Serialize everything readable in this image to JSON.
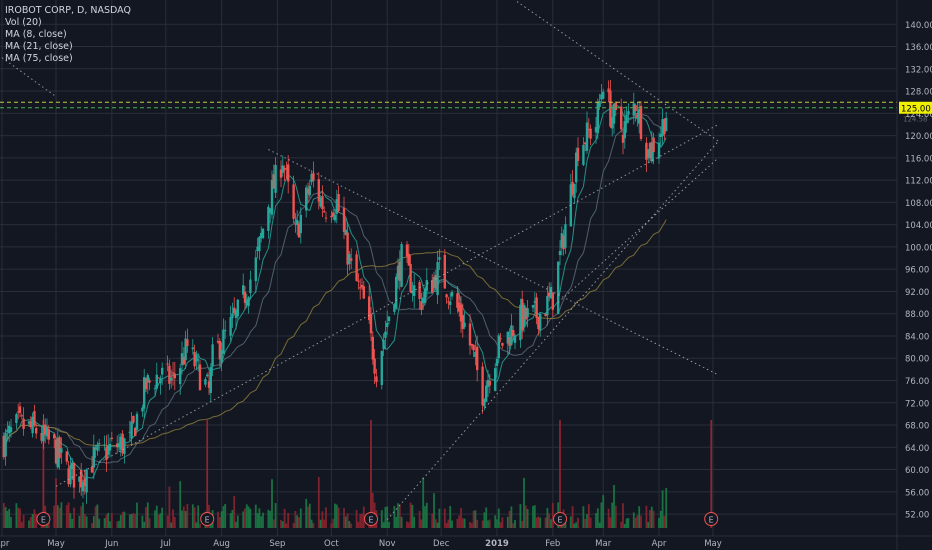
{
  "legend": {
    "symbol_line": "IROBOT CORP, D, NASDAQ",
    "indicators": [
      "Vol (20)",
      "MA (8, close)",
      "MA (21, close)",
      "MA (75, close)"
    ]
  },
  "colors": {
    "background": "#131722",
    "grid": "#2a2e39",
    "axis_text": "#b2b5be",
    "up": "#26a69a",
    "down": "#ef5350",
    "vol_up": "#1b7a45",
    "vol_down": "#8b2530",
    "ma8": "#26a69a",
    "ma21": "#5b6b7a",
    "ma75": "#8a7a3a",
    "price_line": "#4caf50",
    "resistance_line": "#c8c840",
    "trendline": "#b2b5be",
    "price_tag": "#f0f000",
    "earnings_marker": "#ef5350"
  },
  "chart_data": {
    "type": "candlestick",
    "x_axis": {
      "tick_labels": [
        "Apr",
        "May",
        "Jun",
        "Jul",
        "Aug",
        "Sep",
        "Oct",
        "Nov",
        "Dec",
        "2019",
        "Feb",
        "Mar",
        "Apr",
        "May"
      ]
    },
    "y_axis": {
      "range": [
        49.5,
        144
      ],
      "tick_labels": [
        "52.00",
        "56.00",
        "60.00",
        "64.00",
        "68.00",
        "72.00",
        "76.00",
        "80.00",
        "84.00",
        "88.00",
        "92.00",
        "96.00",
        "100.00",
        "104.00",
        "108.00",
        "112.00",
        "116.00",
        "120.00",
        "124.00",
        "128.00",
        "132.00",
        "136.00",
        "140.00"
      ]
    },
    "anchor_closes": [
      [
        "2018-04-02",
        65
      ],
      [
        "2018-04-10",
        68
      ],
      [
        "2018-04-20",
        67
      ],
      [
        "2018-04-30",
        64
      ],
      [
        "2018-05-07",
        60
      ],
      [
        "2018-05-14",
        58
      ],
      [
        "2018-05-22",
        62
      ],
      [
        "2018-06-01",
        64
      ],
      [
        "2018-06-11",
        65
      ],
      [
        "2018-06-20",
        75
      ],
      [
        "2018-06-27",
        77
      ],
      [
        "2018-07-05",
        76
      ],
      [
        "2018-07-13",
        82
      ],
      [
        "2018-07-20",
        77
      ],
      [
        "2018-07-25",
        74
      ],
      [
        "2018-07-27",
        80
      ],
      [
        "2018-08-10",
        88
      ],
      [
        "2018-08-20",
        97
      ],
      [
        "2018-08-27",
        108
      ],
      [
        "2018-09-04",
        116
      ],
      [
        "2018-09-11",
        102
      ],
      [
        "2018-09-20",
        112
      ],
      [
        "2018-09-27",
        107
      ],
      [
        "2018-10-04",
        108
      ],
      [
        "2018-10-12",
        96
      ],
      [
        "2018-10-19",
        90
      ],
      [
        "2018-10-26",
        78
      ],
      [
        "2018-11-02",
        88
      ],
      [
        "2018-11-09",
        98
      ],
      [
        "2018-11-19",
        90
      ],
      [
        "2018-11-30",
        96
      ],
      [
        "2018-12-04",
        93
      ],
      [
        "2018-12-14",
        86
      ],
      [
        "2018-12-24",
        74
      ],
      [
        "2019-01-02",
        82
      ],
      [
        "2019-01-14",
        87
      ],
      [
        "2019-01-25",
        88
      ],
      [
        "2019-02-01",
        91
      ],
      [
        "2019-02-06",
        100
      ],
      [
        "2019-02-15",
        118
      ],
      [
        "2019-02-25",
        122
      ],
      [
        "2019-03-01",
        130
      ],
      [
        "2019-03-05",
        124
      ],
      [
        "2019-03-12",
        121
      ],
      [
        "2019-03-19",
        126
      ],
      [
        "2019-03-26",
        117
      ],
      [
        "2019-04-01",
        120
      ],
      [
        "2019-04-05",
        124
      ]
    ],
    "earnings_markers": [
      "2018-04-24",
      "2018-07-24",
      "2018-10-23",
      "2019-02-05",
      "2019-04-30"
    ],
    "horizontal_lines": [
      125.0,
      126.0
    ],
    "trendlines": [
      [
        [
          "2018-04-01",
          134
        ],
        [
          "2018-05-01",
          127
        ]
      ],
      [
        [
          "2018-08-27",
          117.5
        ],
        [
          "2019-05-04",
          77
        ]
      ],
      [
        [
          "2019-01-08",
          145
        ],
        [
          "2019-05-04",
          119
        ]
      ],
      [
        [
          "2018-05-01",
          57
        ],
        [
          "2019-05-04",
          122
        ]
      ],
      [
        [
          "2018-11-01",
          51
        ],
        [
          "2019-05-04",
          119
        ]
      ],
      [
        [
          "2019-02-04",
          90
        ],
        [
          "2019-05-04",
          116
        ]
      ]
    ],
    "moving_averages": [
      {
        "name": "MA (8, close)",
        "period": 8
      },
      {
        "name": "MA (21, close)",
        "period": 21
      },
      {
        "name": "MA (75, close)",
        "period": 75
      }
    ],
    "last_price": {
      "value": 125.0,
      "label": "125.00",
      "secondary_label": "124.58"
    }
  }
}
